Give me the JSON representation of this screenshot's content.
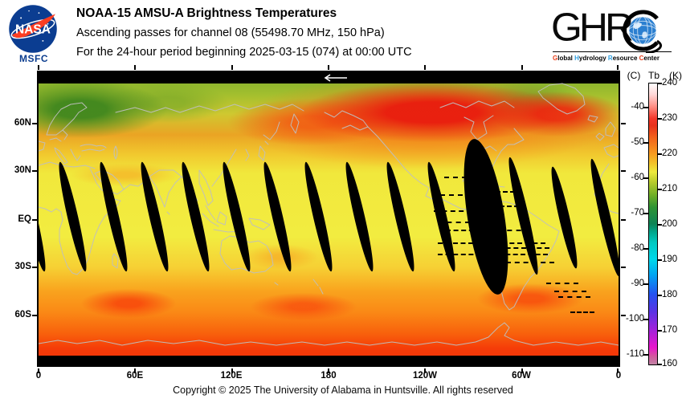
{
  "header": {
    "nasa": {
      "wordmark": "NASA",
      "center": "MSFC"
    },
    "title": "NOAA-15 AMSU-A Brightness Temperatures",
    "subtitle_channel": "Ascending passes for channel 08 (55498.70 MHz, 150 hPa)",
    "subtitle_period": "For the 24-hour period beginning 2025-03-15 (074) at 00:00 UTC",
    "ghrc": {
      "letters": "GHR",
      "letter_c": "C",
      "tagline": [
        {
          "t": "G",
          "c": "#e8401c"
        },
        {
          "t": "lobal ",
          "c": "#000000"
        },
        {
          "t": "H",
          "c": "#2e9fe0"
        },
        {
          "t": "ydrology ",
          "c": "#000000"
        },
        {
          "t": "R",
          "c": "#2e9fe0"
        },
        {
          "t": "esource ",
          "c": "#000000"
        },
        {
          "t": "C",
          "c": "#e8401c"
        },
        {
          "t": "enter",
          "c": "#000000"
        }
      ]
    }
  },
  "map": {
    "lat_labels": [
      "60N",
      "30N",
      "EQ",
      "30S",
      "60S"
    ],
    "lon_labels": [
      "0",
      "60E",
      "120E",
      "180",
      "120W",
      "60W",
      "0"
    ],
    "direction_arrow": "west-arrow"
  },
  "colorbar": {
    "unit_c": "(C)",
    "unit_name": "Tb",
    "unit_k": "(K)",
    "k_labels": [
      "240",
      "230",
      "220",
      "210",
      "200",
      "190",
      "180",
      "170",
      "160"
    ],
    "c_labels": [
      "-40",
      "-50",
      "-60",
      "-70",
      "-80",
      "-90",
      "-100",
      "-110"
    ]
  },
  "footer": {
    "copyright": "Copyright © 2025 The University of Alabama in Huntsville.  All rights reserved"
  },
  "chart_data": {
    "type": "heatmap",
    "title": "NOAA-15 AMSU-A Brightness Temperatures",
    "subtitle": "Ascending passes for channel 08 (55498.70 MHz, 150 hPa)",
    "period": "24-hour period beginning 2025-03-15 (074) at 00:00 UTC",
    "value": "AMSU-A channel 08 brightness temperature Tb",
    "projection": "equirectangular world map, longitude left-to-right 0, 60E, 120E, 180, 120W, 60W, 0; latitude 90N (top) to 90S (bottom)",
    "x_axis": {
      "ticks": [
        "0",
        "60E",
        "120E",
        "180",
        "120W",
        "60W",
        "0"
      ]
    },
    "y_axis": {
      "ticks": [
        "60N",
        "30N",
        "EQ",
        "30S",
        "60S"
      ]
    },
    "colorbar": {
      "k_ticks": [
        240,
        230,
        220,
        210,
        200,
        190,
        180,
        170,
        160
      ],
      "c_ticks": [
        -40,
        -50,
        -60,
        -70,
        -80,
        -90,
        -100,
        -110
      ],
      "k_range": [
        160,
        240
      ],
      "colors_top_to_bottom": [
        "white 240K",
        "red 230K",
        "orange 222K",
        "yellow 214K",
        "green 204K",
        "teal 198K",
        "cyan 190K",
        "blue 180K",
        "violet 172K",
        "magenta 165K",
        "mauve-gray 160K"
      ]
    },
    "approx_values_by_latitude": [
      {
        "band": "75N-90N",
        "tb_k": "210-218",
        "appearance": "yellow-green; thin black no-data strip along top edge"
      },
      {
        "band": "50N-75N",
        "tb_k": "205-233",
        "appearance": "green over N Europe and Greenland; large red maximum 228-233K across Siberia, N Pacific and N America"
      },
      {
        "band": "30N-45N",
        "tb_k": "218-224",
        "appearance": "orange-yellow transition band"
      },
      {
        "band": "30N-30S",
        "tb_k": "213-217",
        "appearance": "yellow tropics crossed by black lens-shaped inter-swath gaps about every 26 degrees of longitude"
      },
      {
        "band": "30S-55S",
        "tb_k": "220-228",
        "appearance": "orange with red patches near 45S"
      },
      {
        "band": "55S-90S",
        "tb_k": "228-234",
        "appearance": "red-orange to red over Antarctica; thin black no-data strip along bottom edge"
      }
    ],
    "no_data": "Black diagonal gaps (tilted top-left to bottom-right) between ascending swaths from ~35N to ~35S; one wide missing-orbit gap near 60W-80W over South America with dashed scan-edge lines; white westward arrow at 180 on top edge",
    "grid": false,
    "legend_position": "right vertical dual-unit (C / K) colorbar"
  }
}
